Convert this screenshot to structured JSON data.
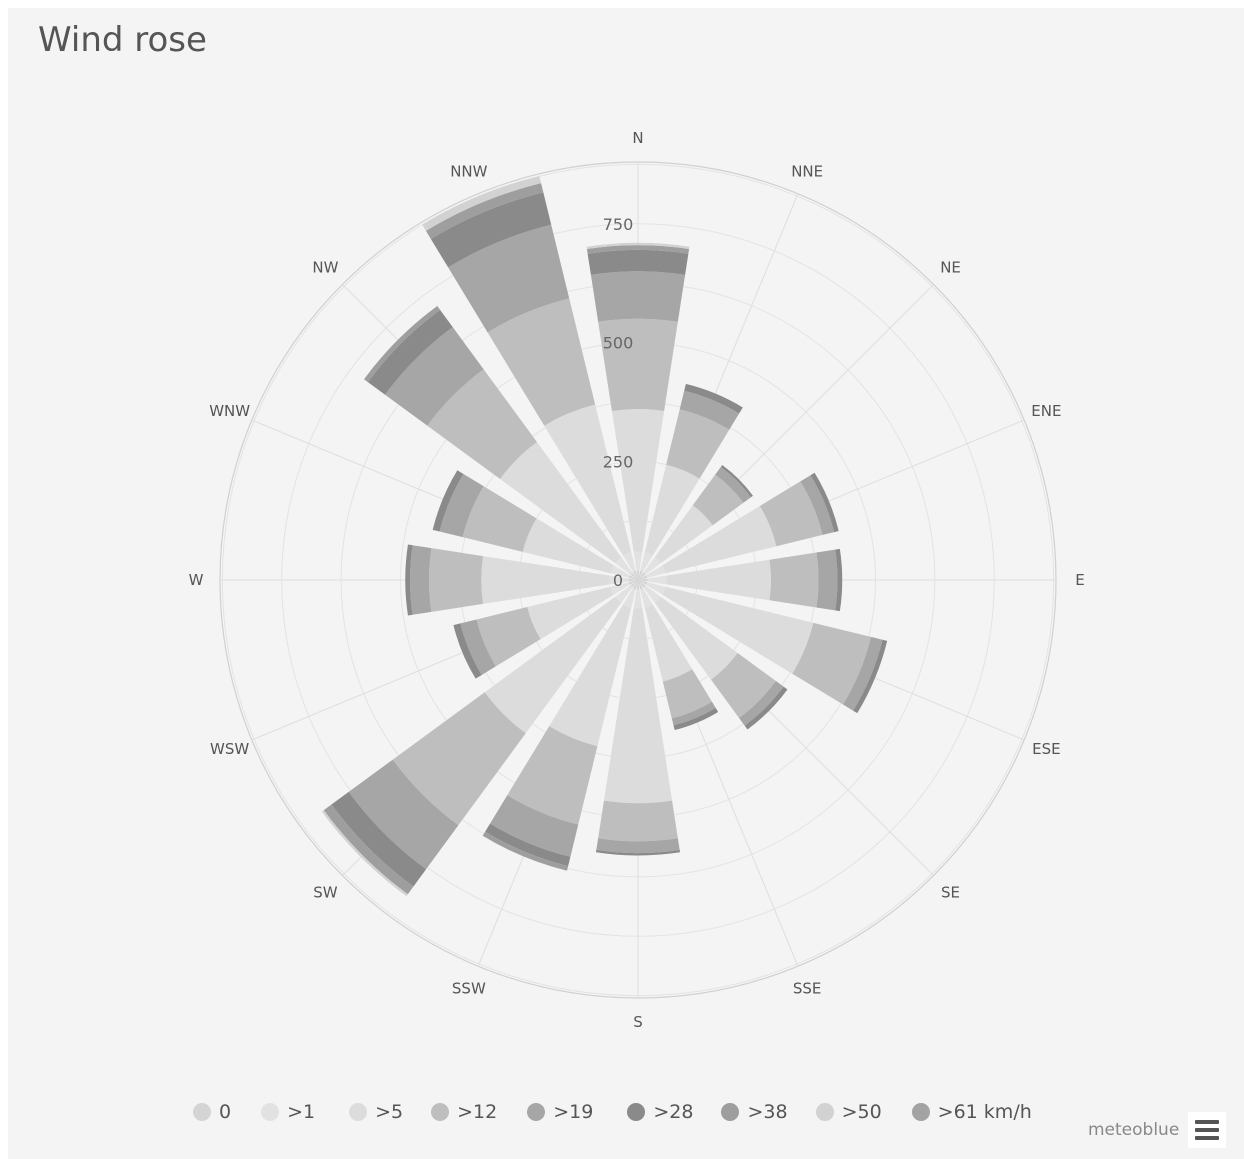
{
  "title": "Wind rose",
  "brand": "meteoblue",
  "icons": {
    "menu": "hamburger-menu-icon"
  },
  "chart_data": {
    "type": "windrose",
    "title": "Wind rose",
    "directions": [
      "N",
      "NNE",
      "NE",
      "ENE",
      "E",
      "ESE",
      "SE",
      "SSE",
      "S",
      "SSW",
      "SW",
      "WSW",
      "W",
      "WNW",
      "NW",
      "NNW"
    ],
    "radial_ticks": [
      0,
      250,
      500,
      750
    ],
    "radial_max": 880,
    "legend_unit": "km/h",
    "bins": [
      {
        "name": "0",
        "label": "0",
        "color": "#d4d4d4"
      },
      {
        "name": ">1",
        "label": ">1",
        "color": "#e2e2e2"
      },
      {
        "name": ">5",
        "label": ">5",
        "color": "#dcdcdc"
      },
      {
        "name": ">12",
        "label": ">12",
        "color": "#bebebe"
      },
      {
        "name": ">19",
        "label": ">19",
        "color": "#a6a6a6"
      },
      {
        "name": ">28",
        "label": ">28",
        "color": "#8a8a8a"
      },
      {
        "name": ">38",
        "label": ">38",
        "color": "#9e9e9e"
      },
      {
        "name": ">50",
        "label": ">50",
        "color": "#d2d2d2"
      },
      {
        "name": ">61",
        "label": ">61 km/h",
        "color": "#a3a3a3"
      }
    ],
    "series": [
      {
        "direction": "N",
        "values": [
          20,
          40,
          300,
          190,
          100,
          45,
          10,
          5,
          0
        ]
      },
      {
        "direction": "NNE",
        "values": [
          20,
          40,
          190,
          120,
          40,
          15,
          0,
          0,
          0
        ]
      },
      {
        "direction": "NE",
        "values": [
          20,
          40,
          135,
          80,
          20,
          5,
          0,
          0,
          0
        ]
      },
      {
        "direction": "ENE",
        "values": [
          20,
          40,
          240,
          100,
          25,
          10,
          0,
          0,
          0
        ]
      },
      {
        "direction": "E",
        "values": [
          20,
          40,
          220,
          100,
          40,
          10,
          0,
          0,
          0
        ]
      },
      {
        "direction": "ESE",
        "values": [
          20,
          40,
          320,
          125,
          25,
          10,
          0,
          0,
          0
        ]
      },
      {
        "direction": "SE",
        "values": [
          20,
          40,
          200,
          100,
          20,
          10,
          0,
          0,
          0
        ]
      },
      {
        "direction": "SSE",
        "values": [
          20,
          40,
          160,
          80,
          15,
          10,
          0,
          0,
          0
        ]
      },
      {
        "direction": "S",
        "values": [
          20,
          40,
          410,
          80,
          25,
          5,
          0,
          0,
          0
        ]
      },
      {
        "direction": "SSW",
        "values": [
          20,
          40,
          300,
          170,
          70,
          20,
          10,
          0,
          0
        ]
      },
      {
        "direction": "SW",
        "values": [
          20,
          40,
          340,
          240,
          115,
          45,
          20,
          5,
          0
        ]
      },
      {
        "direction": "WSW",
        "values": [
          20,
          40,
          180,
          110,
          35,
          15,
          0,
          0,
          0
        ]
      },
      {
        "direction": "W",
        "values": [
          20,
          40,
          270,
          110,
          40,
          10,
          0,
          0,
          0
        ]
      },
      {
        "direction": "WNW",
        "values": [
          20,
          40,
          190,
          130,
          50,
          15,
          0,
          0,
          0
        ]
      },
      {
        "direction": "NW",
        "values": [
          20,
          40,
          300,
          190,
          110,
          45,
          10,
          0,
          0
        ]
      },
      {
        "direction": "NNW",
        "values": [
          20,
          40,
          320,
          230,
          160,
          70,
          20,
          15,
          0
        ]
      }
    ]
  }
}
